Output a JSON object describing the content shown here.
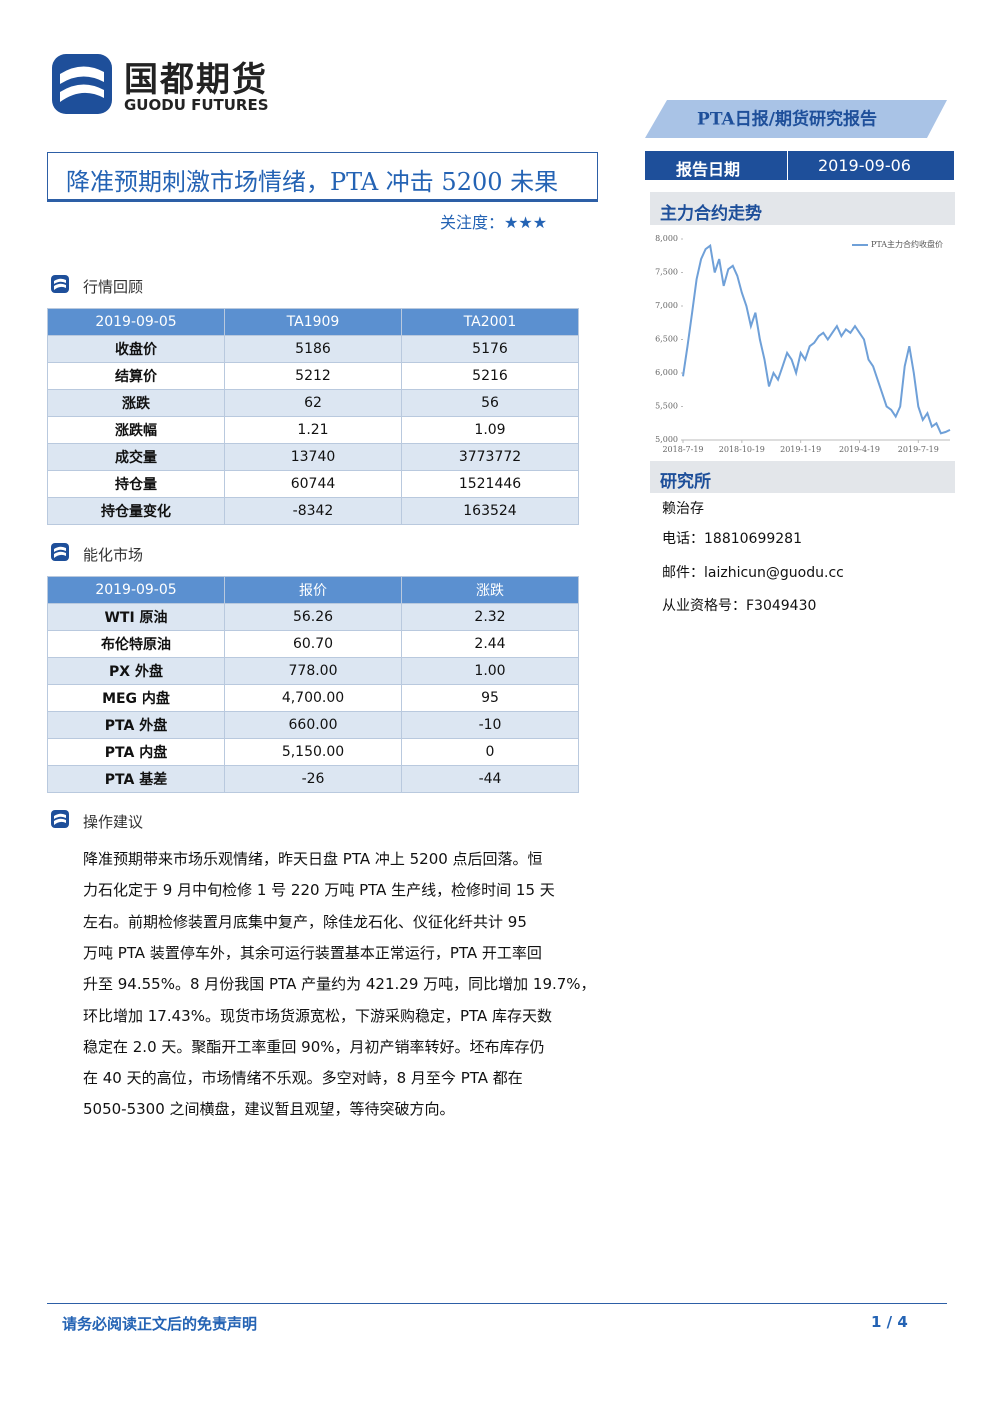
{
  "header": {
    "logo_cn": "国都期货",
    "logo_en": "GUODU FUTURES",
    "report_type": "PTA日报/期货研究报告",
    "title": "降准预期刺激市场情绪，PTA 冲击 5200 未果",
    "attention_label": "关注度：",
    "attention_stars": "★★★"
  },
  "report_date": {
    "label": "报告日期",
    "value": "2019-09-06"
  },
  "market_review": {
    "heading": "行情回顾",
    "table": {
      "header": [
        "2019-09-05",
        "TA1909",
        "TA2001"
      ],
      "rows": [
        [
          "收盘价",
          "5186",
          "5176"
        ],
        [
          "结算价",
          "5212",
          "5216"
        ],
        [
          "涨跌",
          "62",
          "56"
        ],
        [
          "涨跌幅",
          "1.21",
          "1.09"
        ],
        [
          "成交量",
          "13740",
          "3773772"
        ],
        [
          "持仓量",
          "60744",
          "1521446"
        ],
        [
          "持仓量变化",
          "-8342",
          "163524"
        ]
      ]
    }
  },
  "energy_market": {
    "heading": "能化市场",
    "table": {
      "header": [
        "2019-09-05",
        "报价",
        "涨跌"
      ],
      "rows": [
        [
          "WTI 原油",
          "56.26",
          "2.32"
        ],
        [
          "布伦特原油",
          "60.70",
          "2.44"
        ],
        [
          "PX 外盘",
          "778.00",
          "1.00"
        ],
        [
          "MEG 内盘",
          "4,700.00",
          "95"
        ],
        [
          "PTA 外盘",
          "660.00",
          "-10"
        ],
        [
          "PTA 内盘",
          "5,150.00",
          "0"
        ],
        [
          "PTA 基差",
          "-26",
          "-44"
        ]
      ]
    }
  },
  "advice": {
    "heading": "操作建议",
    "lines": [
      "降准预期带来市场乐观情绪，昨天日盘 PTA 冲上 5200 点后回落。恒",
      "力石化定于 9 月中旬检修 1 号 220 万吨 PTA 生产线，检修时间 15 天",
      "左右。前期检修装置月底集中复产，除佳龙石化、仪征化纤共计 95",
      "万吨 PTA 装置停车外，其余可运行装置基本正常运行，PTA 开工率回",
      "升至 94.55%。8 月份我国 PTA 产量约为 421.29 万吨，同比增加 19.7%，",
      "环比增加 17.43%。现货市场货源宽松，下游采购稳定，PTA 库存天数",
      "稳定在 2.0 天。聚酯开工率重回 90%，月初产销率转好。坯布库存仍",
      "在 40 天的高位，市场情绪不乐观。多空对峙，8 月至今 PTA 都在",
      "5050-5300 之间横盘，建议暂且观望，等待突破方向。"
    ]
  },
  "trend": {
    "heading": "主力合约走势",
    "chart": {
      "type": "line",
      "categories": [
        "2018-7-19",
        null,
        null,
        null,
        null,
        null,
        null,
        null,
        null,
        null,
        null,
        null,
        null,
        "2018-10-19",
        null,
        null,
        null,
        null,
        null,
        null,
        null,
        null,
        null,
        null,
        null,
        null,
        "2019-1-19",
        null,
        null,
        null,
        null,
        null,
        null,
        null,
        null,
        null,
        null,
        null,
        null,
        "2019-4-19",
        null,
        null,
        null,
        null,
        null,
        null,
        null,
        null,
        null,
        null,
        null,
        null,
        "2019-7-19",
        null,
        null,
        null,
        null,
        null,
        null,
        null
      ],
      "series": [
        {
          "name": "PTA主力合约收盘价",
          "color": "#6fa0d8",
          "values": [
            5950,
            6400,
            6900,
            7400,
            7700,
            7850,
            7900,
            7500,
            7700,
            7300,
            7550,
            7600,
            7450,
            7200,
            7000,
            6700,
            6900,
            6500,
            6200,
            5800,
            6000,
            5900,
            6100,
            6300,
            6200,
            6000,
            6300,
            6200,
            6400,
            6450,
            6550,
            6600,
            6500,
            6600,
            6700,
            6550,
            6650,
            6600,
            6700,
            6600,
            6500,
            6200,
            6100,
            5900,
            5700,
            5500,
            5450,
            5350,
            5500,
            6100,
            6400,
            6000,
            5500,
            5300,
            5400,
            5200,
            5250,
            5100,
            5120,
            5150
          ]
        }
      ],
      "ylim": [
        5000,
        8000
      ],
      "yticks": [
        {
          "value": 8000,
          "label": "8,000"
        },
        {
          "value": 7500,
          "label": "7,500"
        },
        {
          "value": 7000,
          "label": "7,000"
        },
        {
          "value": 6500,
          "label": "6,500"
        },
        {
          "value": 6000,
          "label": "6,000"
        },
        {
          "value": 5500,
          "label": "5,500"
        },
        {
          "value": 5000,
          "label": "5,000"
        }
      ],
      "legend": "top-right"
    }
  },
  "research": {
    "heading": "研究所",
    "name": "赖治存",
    "phone": "电话：18810699281",
    "email": "邮件：laizhicun@guodu.cc",
    "license": "从业资格号：F3049430"
  },
  "footer": {
    "disclaimer": "请务必阅读正文后的免责声明",
    "page": "1 / 4"
  }
}
